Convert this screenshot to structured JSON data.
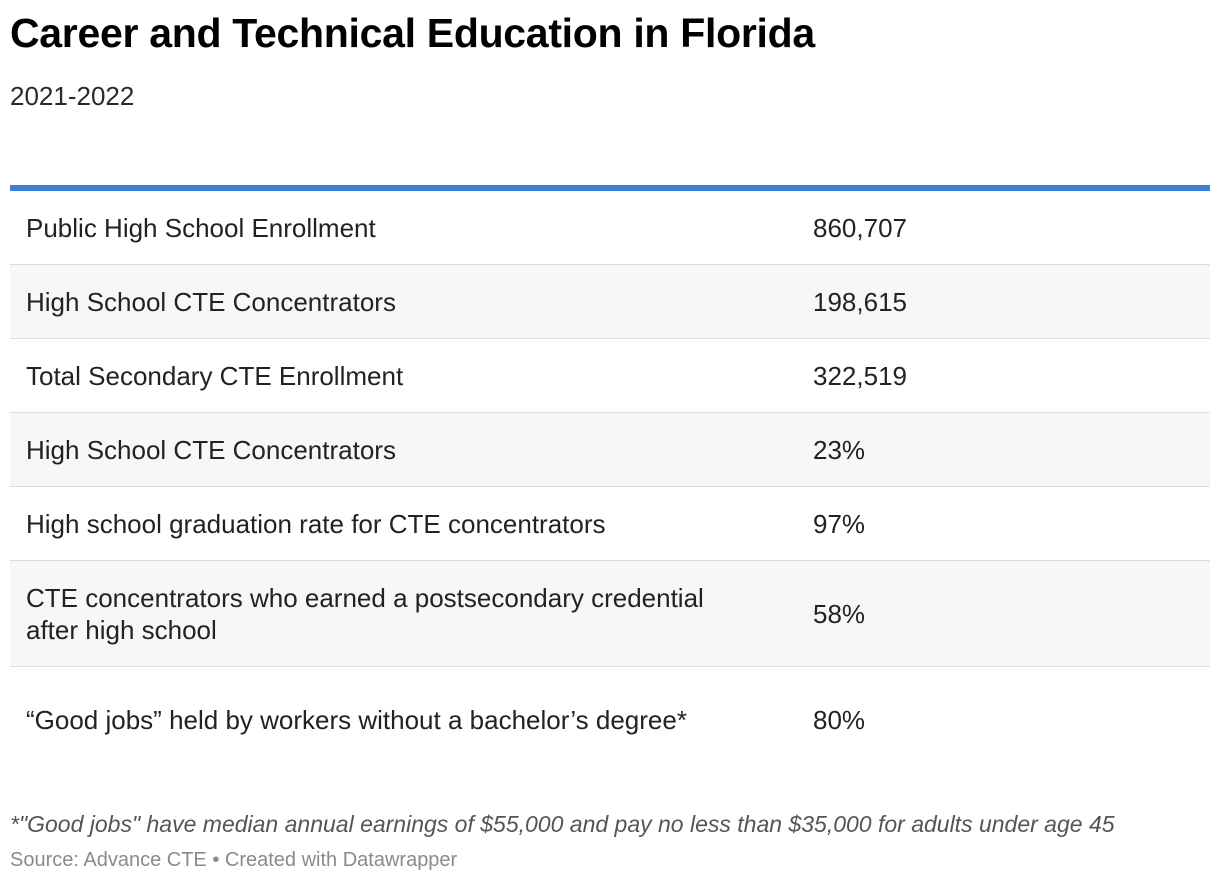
{
  "chart_data": {
    "type": "table",
    "title": "Career and Technical Education in Florida",
    "subtitle": "2021-2022",
    "rows": [
      {
        "label": "Public High School Enrollment",
        "value": "860,707"
      },
      {
        "label": "High School CTE Concentrators",
        "value": "198,615"
      },
      {
        "label": "Total Secondary CTE Enrollment",
        "value": "322,519"
      },
      {
        "label": "High School CTE Concentrators",
        "value": "23%"
      },
      {
        "label": "High school graduation rate for CTE concentrators",
        "value": "97%"
      },
      {
        "label": "CTE concentrators who earned a postsecondary credential after high school",
        "value": "58%"
      },
      {
        "label": "“Good jobs” held by workers without a bachelor’s degree*",
        "value": "80%"
      }
    ],
    "footnote": "*\"Good jobs\" have median annual earnings of $55,000 and pay no less than $35,000 for adults under age 45",
    "source": "Source: Advance CTE • Created with Datawrapper"
  },
  "colors": {
    "accent_rule": "#3b7fd4",
    "row_stripe": "#f7f7f7",
    "row_divider": "#dcdcdc"
  }
}
